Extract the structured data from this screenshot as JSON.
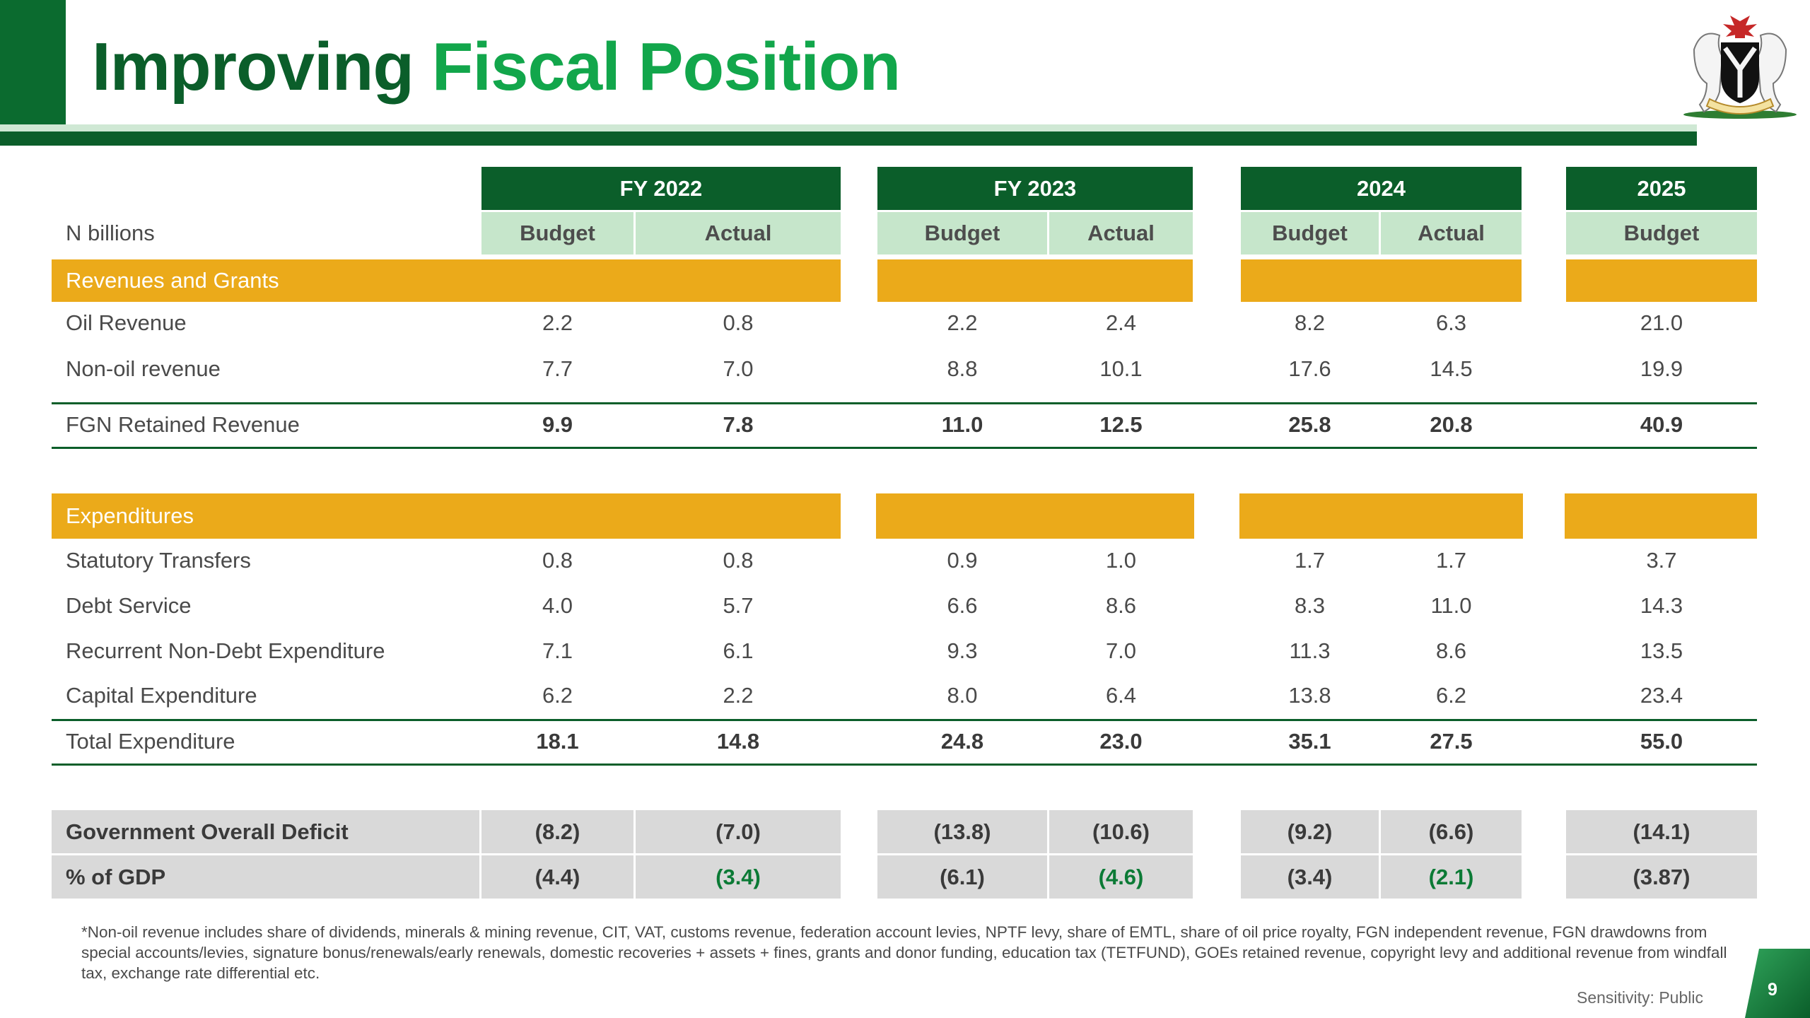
{
  "title": {
    "part1": "Improving",
    "part2": "Fiscal Position"
  },
  "crest_icon": "nigeria-coat-of-arms",
  "colors": {
    "dark_green": "#0b5e2a",
    "bright_green": "#12a64b",
    "light_green": "#c6e6cb",
    "amber": "#ebaa1a",
    "gray": "#d9d9d9"
  },
  "table": {
    "unit_label": "N billions",
    "years": [
      "FY 2022",
      "FY 2023",
      "2024",
      "2025"
    ],
    "subheaders": [
      "Budget",
      "Actual",
      "Budget",
      "Actual",
      "Budget",
      "Actual",
      "Budget"
    ],
    "section_revenue": "Revenues and Grants",
    "section_expenditure": "Expenditures",
    "rows": {
      "oil": {
        "label": "Oil Revenue",
        "values": [
          "2.2",
          "0.8",
          "2.2",
          "2.4",
          "8.2",
          "6.3",
          "21.0"
        ]
      },
      "nonoil": {
        "label": "Non-oil revenue",
        "values": [
          "7.7",
          "7.0",
          "8.8",
          "10.1",
          "17.6",
          "14.5",
          "19.9"
        ]
      },
      "fgn": {
        "label": "FGN Retained Revenue",
        "values": [
          "9.9",
          "7.8",
          "11.0",
          "12.5",
          "25.8",
          "20.8",
          "40.9"
        ]
      },
      "statutory": {
        "label": "Statutory Transfers",
        "values": [
          "0.8",
          "0.8",
          "0.9",
          "1.0",
          "1.7",
          "1.7",
          "3.7"
        ]
      },
      "debt": {
        "label": "Debt Service",
        "values": [
          "4.0",
          "5.7",
          "6.6",
          "8.6",
          "8.3",
          "11.0",
          "14.3"
        ]
      },
      "recurrent": {
        "label": "Recurrent Non-Debt Expenditure",
        "values": [
          "7.1",
          "6.1",
          "9.3",
          "7.0",
          "11.3",
          "8.6",
          "13.5"
        ]
      },
      "capital": {
        "label": "Capital Expenditure",
        "values": [
          "6.2",
          "2.2",
          "8.0",
          "6.4",
          "13.8",
          "6.2",
          "23.4"
        ]
      },
      "total": {
        "label": "Total Expenditure",
        "values": [
          "18.1",
          "14.8",
          "24.8",
          "23.0",
          "35.1",
          "27.5",
          "55.0"
        ]
      },
      "deficit": {
        "label": "Government Overall Deficit",
        "values": [
          "(8.2)",
          "(7.0)",
          "(13.8)",
          "(10.6)",
          "(9.2)",
          "(6.6)",
          "(14.1)"
        ]
      },
      "gdp": {
        "label": "% of GDP",
        "values": [
          "(4.4)",
          "(3.4)",
          "(6.1)",
          "(4.6)",
          "(3.4)",
          "(2.1)",
          "(3.87)"
        ]
      }
    }
  },
  "footnote": "*Non-oil revenue includes share of dividends, minerals & mining revenue, CIT, VAT, customs revenue, federation account levies, NPTF levy, share of EMTL, share of oil price royalty, FGN independent revenue, FGN drawdowns from special accounts/levies, signature bonus/renewals/early renewals, domestic recoveries + assets + fines, grants and donor funding, education tax (TETFUND), GOEs retained revenue, copyright levy and additional revenue from windfall tax, exchange rate differential etc.",
  "sensitivity": "Sensitivity: Public",
  "page_number": "9"
}
